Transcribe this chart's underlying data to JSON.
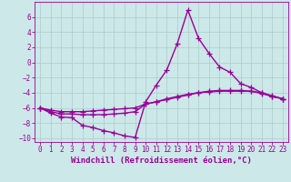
{
  "xlabel": "Windchill (Refroidissement éolien,°C)",
  "bg_color": "#cce8e8",
  "grid_color": "#aacccc",
  "line_color": "#990099",
  "xlim": [
    -0.5,
    23.5
  ],
  "ylim": [
    -10.5,
    8.0
  ],
  "yticks": [
    -10,
    -8,
    -6,
    -4,
    -2,
    0,
    2,
    4,
    6
  ],
  "xticks": [
    0,
    1,
    2,
    3,
    4,
    5,
    6,
    7,
    8,
    9,
    10,
    11,
    12,
    13,
    14,
    15,
    16,
    17,
    18,
    19,
    20,
    21,
    22,
    23
  ],
  "line1_x": [
    0,
    1,
    2,
    3,
    4,
    5,
    6,
    7,
    8,
    9,
    10,
    11,
    12,
    13,
    14,
    15,
    16,
    17,
    18,
    19,
    20,
    21,
    22,
    23
  ],
  "line1_y": [
    -6.0,
    -6.7,
    -7.2,
    -7.3,
    -8.3,
    -8.6,
    -9.0,
    -9.3,
    -9.7,
    -9.9,
    -5.2,
    -3.0,
    -1.0,
    2.5,
    6.9,
    3.2,
    1.2,
    -0.6,
    -1.3,
    -2.8,
    -3.3,
    -4.0,
    -4.5,
    -4.8
  ],
  "line2_x": [
    0,
    1,
    2,
    3,
    4,
    5,
    6,
    7,
    8,
    9,
    10,
    11,
    12,
    13,
    14,
    15,
    16,
    17,
    18,
    19,
    20,
    21,
    22,
    23
  ],
  "line2_y": [
    -6.0,
    -6.5,
    -6.8,
    -6.8,
    -6.9,
    -6.9,
    -6.9,
    -6.8,
    -6.7,
    -6.5,
    -5.5,
    -5.2,
    -4.8,
    -4.5,
    -4.2,
    -4.0,
    -3.8,
    -3.7,
    -3.7,
    -3.7,
    -3.8,
    -4.0,
    -4.4,
    -4.8
  ],
  "line3_x": [
    0,
    1,
    2,
    3,
    4,
    5,
    6,
    7,
    8,
    9,
    10,
    11,
    12,
    13,
    14,
    15,
    16,
    17,
    18,
    19,
    20,
    21,
    22,
    23
  ],
  "line3_y": [
    -6.0,
    -6.3,
    -6.5,
    -6.5,
    -6.5,
    -6.4,
    -6.3,
    -6.2,
    -6.1,
    -6.0,
    -5.5,
    -5.2,
    -4.9,
    -4.6,
    -4.3,
    -4.0,
    -3.9,
    -3.8,
    -3.8,
    -3.8,
    -3.8,
    -4.1,
    -4.5,
    -4.8
  ],
  "marker_size": 4,
  "line_width": 1.0,
  "tick_fontsize": 5.5,
  "label_fontsize": 6.5
}
